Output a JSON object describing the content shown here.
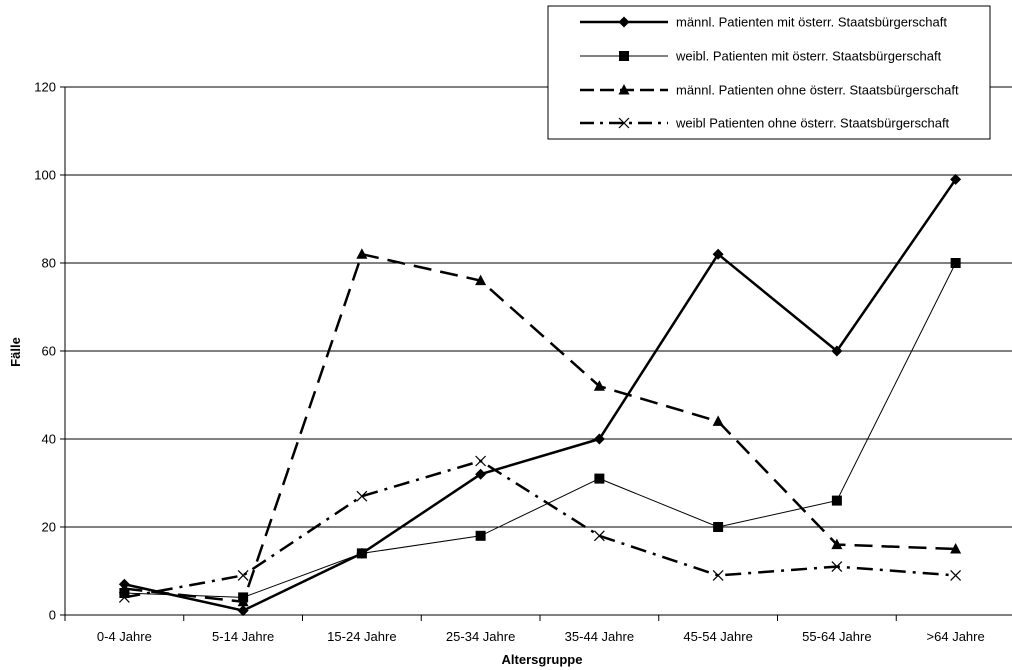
{
  "chart_data": {
    "type": "line",
    "title": "",
    "xlabel": "Altersgruppe",
    "ylabel": "Fälle",
    "categories": [
      "0-4 Jahre",
      "5-14 Jahre",
      "15-24 Jahre",
      "25-34 Jahre",
      "35-44 Jahre",
      "45-54 Jahre",
      "55-64 Jahre",
      ">64 Jahre"
    ],
    "ylim": [
      0,
      120
    ],
    "yticks": [
      0,
      20,
      40,
      60,
      80,
      100,
      120
    ],
    "grid": "horizontal",
    "legend_position": "top-right",
    "series": [
      {
        "name": "männl. Patienten mit österr. Staatsbürgerschaft",
        "values": [
          7,
          1,
          14,
          32,
          40,
          82,
          60,
          99
        ],
        "marker": "diamond",
        "line_style": "solid",
        "line_weight": "thick",
        "color": "#000000"
      },
      {
        "name": "weibl. Patienten mit österr. Staatsbürgerschaft",
        "values": [
          5,
          4,
          14,
          18,
          31,
          20,
          26,
          80
        ],
        "marker": "square",
        "line_style": "solid",
        "line_weight": "thin",
        "color": "#000000"
      },
      {
        "name": "männl. Patienten ohne österr. Staatsbürgerschaft",
        "values": [
          6,
          3,
          82,
          76,
          52,
          44,
          16,
          15
        ],
        "marker": "triangle",
        "line_style": "dashed",
        "line_weight": "thick",
        "color": "#000000"
      },
      {
        "name": "weibl Patienten ohne österr. Staatsbürgerschaft",
        "values": [
          4,
          9,
          27,
          35,
          18,
          9,
          11,
          9
        ],
        "marker": "x",
        "line_style": "dash-dot",
        "line_weight": "thick",
        "color": "#000000"
      }
    ]
  }
}
